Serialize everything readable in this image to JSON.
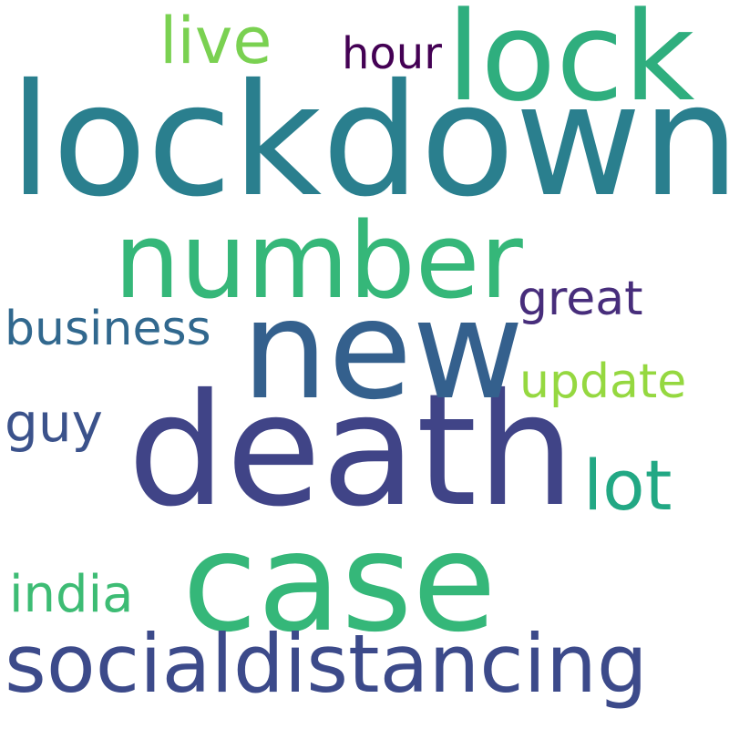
{
  "words": [
    {
      "key": "lockdown",
      "text": "lockdown",
      "color": "#2a7f8e"
    },
    {
      "key": "death",
      "text": "death",
      "color": "#404487"
    },
    {
      "key": "new",
      "text": "new",
      "color": "#34608d"
    },
    {
      "key": "case",
      "text": "case",
      "color": "#35b779"
    },
    {
      "key": "number",
      "text": "number",
      "color": "#35b779"
    },
    {
      "key": "lock",
      "text": "lock",
      "color": "#2fae7e"
    },
    {
      "key": "socialdistancing",
      "text": "socialdistancing",
      "color": "#3c4a8a"
    },
    {
      "key": "business",
      "text": "business",
      "color": "#31688e"
    },
    {
      "key": "live",
      "text": "live",
      "color": "#7ad151"
    },
    {
      "key": "hour",
      "text": "hour",
      "color": "#440154"
    },
    {
      "key": "great",
      "text": "great",
      "color": "#472d7b"
    },
    {
      "key": "update",
      "text": "update",
      "color": "#95d840"
    },
    {
      "key": "lot",
      "text": "lot",
      "color": "#22a884"
    },
    {
      "key": "guy",
      "text": "guy",
      "color": "#3b528b"
    },
    {
      "key": "india",
      "text": "india",
      "color": "#3dbc74"
    }
  ]
}
